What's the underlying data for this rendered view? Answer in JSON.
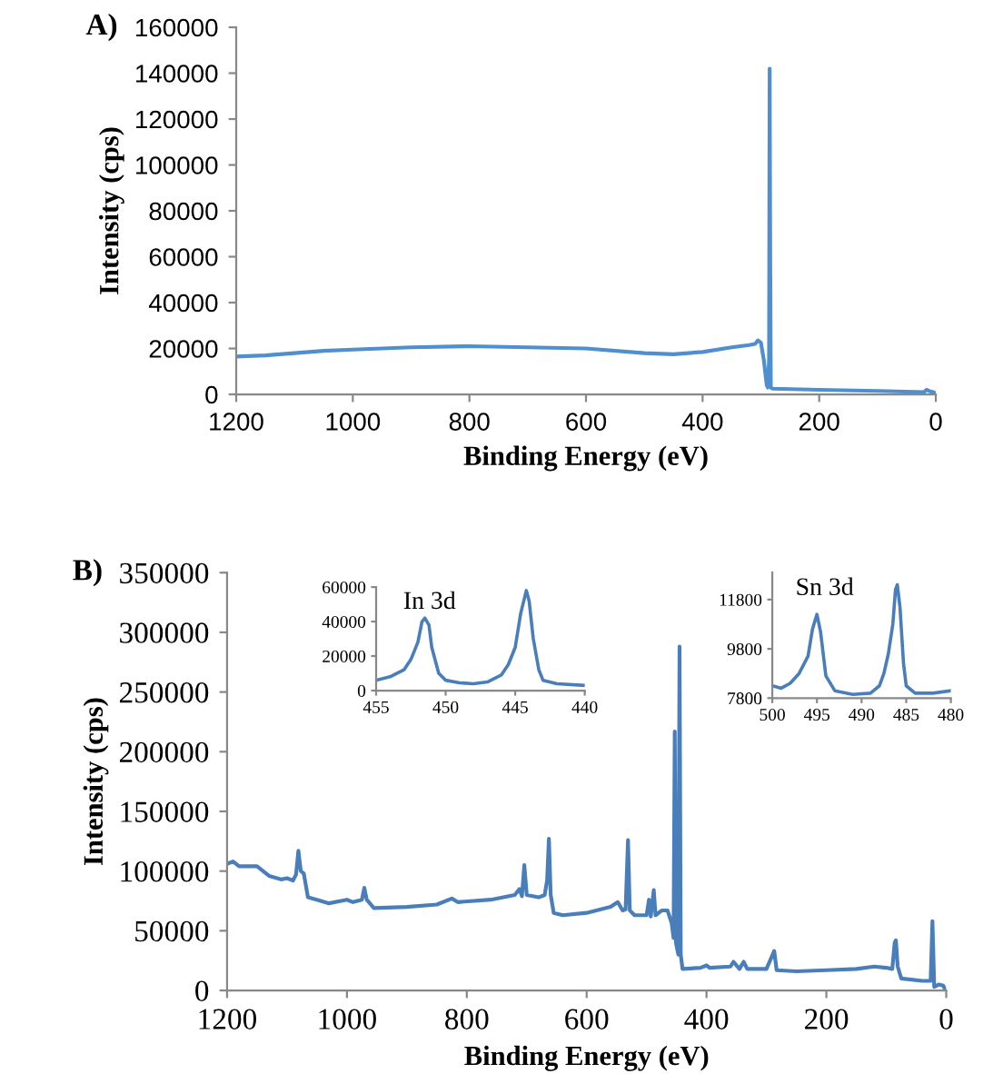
{
  "chart_data": [
    {
      "type": "line",
      "title": "A)",
      "xlabel": "Binding Energy (eV)",
      "ylabel": "Intensity (cps)",
      "xlim": [
        1200,
        0
      ],
      "xticks": [
        1200,
        1000,
        800,
        600,
        400,
        200,
        0
      ],
      "ylim": [
        0,
        160000
      ],
      "yticks": [
        0,
        20000,
        40000,
        60000,
        80000,
        100000,
        120000,
        140000,
        160000
      ],
      "grid": false,
      "legend": false,
      "marker": "none",
      "line_style": "solid",
      "series": [
        {
          "color": "#4f8fcf",
          "x": [
            1200,
            1150,
            1100,
            1050,
            1000,
            900,
            800,
            700,
            600,
            500,
            450,
            400,
            350,
            320,
            310,
            305,
            300,
            295,
            290,
            288,
            286,
            285,
            284,
            283,
            280,
            200,
            100,
            20,
            16,
            12,
            5,
            0
          ],
          "values": [
            16500,
            17000,
            18000,
            19000,
            19500,
            20500,
            21000,
            20500,
            20000,
            18000,
            17500,
            18500,
            20500,
            21500,
            22000,
            23500,
            22500,
            15000,
            4000,
            3000,
            15000,
            142000,
            60000,
            3000,
            2500,
            2000,
            1500,
            1000,
            2000,
            1500,
            1000,
            500
          ]
        }
      ]
    },
    {
      "type": "line",
      "title": "B)",
      "xlabel": "Binding Energy (eV)",
      "ylabel": "Intensity (cps)",
      "xlim": [
        1200,
        0
      ],
      "xticks": [
        1200,
        1000,
        800,
        600,
        400,
        200,
        0
      ],
      "ylim": [
        0,
        350000
      ],
      "yticks": [
        0,
        50000,
        100000,
        150000,
        200000,
        250000,
        300000,
        350000
      ],
      "grid": false,
      "legend": false,
      "marker": "none",
      "line_style": "solid",
      "series": [
        {
          "color": "#4a7ebb",
          "x": [
            1200,
            1190,
            1180,
            1150,
            1140,
            1130,
            1110,
            1100,
            1090,
            1085,
            1081,
            1077,
            1072,
            1065,
            1050,
            1030,
            1000,
            990,
            975,
            971,
            967,
            955,
            900,
            850,
            825,
            815,
            760,
            720,
            712,
            708,
            704,
            700,
            680,
            670,
            666,
            663,
            660,
            655,
            640,
            600,
            560,
            548,
            540,
            535,
            531,
            528,
            520,
            500,
            496,
            493,
            488,
            485,
            475,
            465,
            458,
            455,
            453,
            451,
            447,
            445,
            443,
            440,
            410,
            400,
            395,
            360,
            355,
            345,
            338,
            332,
            300,
            287,
            283,
            250,
            200,
            150,
            120,
            100,
            90,
            86,
            84,
            81,
            75,
            40,
            26,
            23,
            20,
            12,
            5,
            2
          ],
          "values": [
            106000,
            108000,
            104000,
            104000,
            100000,
            96000,
            93000,
            94000,
            92000,
            97000,
            117000,
            100000,
            98000,
            78000,
            76000,
            73000,
            76000,
            74000,
            76000,
            86000,
            76000,
            69000,
            70000,
            72000,
            77000,
            74000,
            76000,
            80000,
            85000,
            79000,
            105000,
            80000,
            78000,
            80000,
            92000,
            127000,
            80000,
            65000,
            63000,
            65000,
            70000,
            74000,
            67000,
            68000,
            126000,
            67000,
            63000,
            63000,
            76000,
            62000,
            84000,
            63000,
            67000,
            67000,
            56000,
            44000,
            217000,
            40000,
            30000,
            288000,
            30000,
            18000,
            19000,
            21000,
            19000,
            20000,
            24000,
            18000,
            24000,
            18000,
            18000,
            33000,
            17000,
            16000,
            17000,
            18000,
            20000,
            19000,
            18000,
            40000,
            42000,
            20000,
            10000,
            8000,
            8000,
            58000,
            3000,
            5000,
            4000,
            1000
          ]
        }
      ]
    },
    {
      "type": "line",
      "title": "In 3d",
      "xlim": [
        455,
        440
      ],
      "xticks": [
        455,
        450,
        445,
        440
      ],
      "ylim": [
        0,
        60000
      ],
      "yticks": [
        0,
        20000,
        40000,
        60000
      ],
      "grid": false,
      "legend": false,
      "marker": "none",
      "line_style": "solid",
      "series": [
        {
          "color": "#4a7ebb",
          "x": [
            455,
            454,
            453,
            452.5,
            452,
            451.7,
            451.5,
            451.2,
            451,
            450.5,
            450,
            449,
            448,
            447,
            446,
            445.5,
            445,
            444.6,
            444.2,
            444,
            443.7,
            443.3,
            443,
            442,
            440
          ],
          "values": [
            6000,
            8000,
            12000,
            18000,
            28000,
            40000,
            42000,
            38000,
            25000,
            10000,
            6000,
            4500,
            4000,
            5000,
            9000,
            15000,
            25000,
            45000,
            58000,
            52000,
            30000,
            12000,
            6000,
            4000,
            3000
          ]
        }
      ]
    },
    {
      "type": "line",
      "title": "Sn 3d",
      "xlim": [
        500,
        480
      ],
      "xticks": [
        500,
        495,
        490,
        485,
        480
      ],
      "ylim": [
        7800,
        12900
      ],
      "yticks": [
        7800,
        9800,
        11800
      ],
      "grid": false,
      "legend": false,
      "marker": "none",
      "line_style": "solid",
      "series": [
        {
          "color": "#4a7ebb",
          "x": [
            500,
            499,
            498,
            497,
            496,
            495.5,
            495,
            494.6,
            494,
            493,
            491,
            489,
            488,
            487.5,
            487,
            486.5,
            486.2,
            486,
            485.7,
            485.3,
            485,
            484,
            482,
            480
          ],
          "values": [
            8300,
            8200,
            8400,
            8800,
            9500,
            10600,
            11200,
            10500,
            8700,
            8100,
            7950,
            8000,
            8300,
            8800,
            9600,
            10800,
            12200,
            12400,
            11500,
            9200,
            8300,
            8000,
            8000,
            8100
          ]
        }
      ]
    }
  ]
}
